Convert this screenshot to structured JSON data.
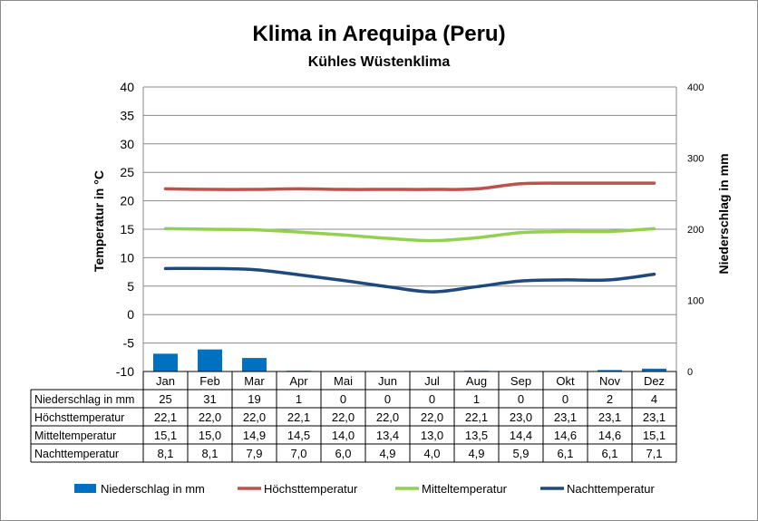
{
  "chart_data": {
    "type": "bar+line",
    "title": "Klima in Arequipa (Peru)",
    "subtitle": "Kühles Wüstenklima",
    "ylabel_left": "Temperatur in °C",
    "ylabel_right": "Niederschlag in mm",
    "ylim_left": [
      -10,
      40
    ],
    "yticks_left": [
      "40",
      "35",
      "30",
      "25",
      "20",
      "15",
      "10",
      "5",
      "0",
      "-5",
      "-10"
    ],
    "ylim_right": [
      0,
      400
    ],
    "yticks_right": [
      "400",
      "300",
      "200",
      "100",
      "0"
    ],
    "grid": true,
    "legend_position": "bottom",
    "categories": [
      "Jan",
      "Feb",
      "Mar",
      "Apr",
      "Mai",
      "Jun",
      "Jul",
      "Aug",
      "Sep",
      "Okt",
      "Nov",
      "Dez"
    ],
    "series": [
      {
        "name": "Niederschlag in mm",
        "type": "bar",
        "axis": "right",
        "color": "#0070c0",
        "values": [
          25,
          31,
          19,
          1,
          0,
          0,
          0,
          1,
          0,
          0,
          2,
          4
        ],
        "labels": [
          "25",
          "31",
          "19",
          "1",
          "0",
          "0",
          "0",
          "1",
          "0",
          "0",
          "2",
          "4"
        ]
      },
      {
        "name": "Höchsttemperatur",
        "type": "line",
        "axis": "left",
        "color": "#c0504d",
        "values": [
          22.1,
          22.0,
          22.0,
          22.1,
          22.0,
          22.0,
          22.0,
          22.1,
          23.0,
          23.1,
          23.1,
          23.1
        ],
        "labels": [
          "22,1",
          "22,0",
          "22,0",
          "22,1",
          "22,0",
          "22,0",
          "22,0",
          "22,1",
          "23,0",
          "23,1",
          "23,1",
          "23,1"
        ]
      },
      {
        "name": "Mitteltemperatur",
        "type": "line",
        "axis": "left",
        "color": "#92d050",
        "values": [
          15.1,
          15.0,
          14.9,
          14.5,
          14.0,
          13.4,
          13.0,
          13.5,
          14.4,
          14.6,
          14.6,
          15.1
        ],
        "labels": [
          "15,1",
          "15,0",
          "14,9",
          "14,5",
          "14,0",
          "13,4",
          "13,0",
          "13,5",
          "14,4",
          "14,6",
          "14,6",
          "15,1"
        ]
      },
      {
        "name": "Nachttemperatur",
        "type": "line",
        "axis": "left",
        "color": "#1f497d",
        "values": [
          8.1,
          8.1,
          7.9,
          7.0,
          6.0,
          4.9,
          4.0,
          4.9,
          5.9,
          6.1,
          6.1,
          7.1
        ],
        "labels": [
          "8,1",
          "8,1",
          "7,9",
          "7,0",
          "6,0",
          "4,9",
          "4,0",
          "4,9",
          "5,9",
          "6,1",
          "6,1",
          "7,1"
        ]
      }
    ]
  }
}
